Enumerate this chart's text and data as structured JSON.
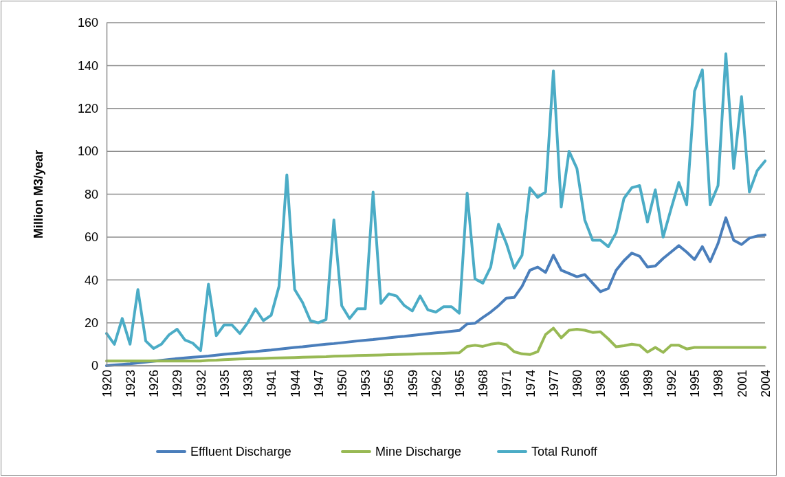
{
  "chart_data": {
    "type": "line",
    "ylabel": "Million M3/year",
    "ylim": [
      0,
      160
    ],
    "yticks": [
      0,
      20,
      40,
      60,
      80,
      100,
      120,
      140,
      160
    ],
    "grid": "y",
    "legend": "bottom",
    "marker": "none",
    "line_style": "solid",
    "categories": [
      "1920",
      null,
      null,
      "1923",
      null,
      null,
      "1926",
      null,
      null,
      "1929",
      null,
      null,
      "1932",
      null,
      null,
      "1935",
      null,
      null,
      "1938",
      null,
      null,
      "1941",
      null,
      null,
      "1944",
      null,
      null,
      "1947",
      null,
      null,
      "1950",
      null,
      null,
      "1953",
      null,
      null,
      "1956",
      null,
      null,
      "1959",
      null,
      null,
      "1962",
      null,
      null,
      "1965",
      null,
      null,
      "1968",
      null,
      null,
      "1971",
      null,
      null,
      "1974",
      null,
      null,
      "1977",
      null,
      null,
      "1980",
      null,
      null,
      "1983",
      null,
      null,
      "1986",
      null,
      null,
      "1989",
      null,
      null,
      "1992",
      null,
      null,
      "1995",
      null,
      null,
      "1998",
      null,
      null,
      "2001",
      null,
      null,
      "2004"
    ],
    "series": [
      {
        "name": "Effluent Discharge",
        "color": "#4a7ebb",
        "values": [
          0,
          0.3,
          0.6,
          0.9,
          1.3,
          1.7,
          2.1,
          2.5,
          2.9,
          3.3,
          3.6,
          3.9,
          4.2,
          4.5,
          4.9,
          5.3,
          5.6,
          5.9,
          6.3,
          6.6,
          7.0,
          7.3,
          7.7,
          8.1,
          8.5,
          8.8,
          9.2,
          9.6,
          10,
          10.3,
          10.7,
          11.1,
          11.5,
          11.9,
          12.2,
          12.6,
          13,
          13.4,
          13.7,
          14.1,
          14.5,
          14.9,
          15.3,
          15.6,
          16,
          16.4,
          19.5,
          19.8,
          22.5,
          25,
          28,
          31.5,
          31.8,
          37,
          44.5,
          46,
          43.5,
          51.5,
          44.5,
          43,
          41.5,
          42.5,
          38.5,
          34.5,
          36,
          44.5,
          49,
          52.5,
          51,
          46,
          46.5,
          50,
          53,
          56,
          53,
          49.5,
          55.5,
          48.5,
          57,
          69,
          58.5,
          56.5,
          59.5,
          60.5,
          61
        ]
      },
      {
        "name": "Mine Discharge",
        "color": "#98b954",
        "values": [
          2.2,
          2.2,
          2.2,
          2.2,
          2.2,
          2.2,
          2.2,
          2.2,
          2.2,
          2.2,
          2.2,
          2.2,
          2.2,
          2.5,
          2.6,
          2.8,
          3,
          3.1,
          3.2,
          3.3,
          3.4,
          3.5,
          3.6,
          3.7,
          3.8,
          3.9,
          4,
          4.1,
          4.2,
          4.4,
          4.5,
          4.6,
          4.7,
          4.8,
          4.9,
          5,
          5.1,
          5.2,
          5.3,
          5.4,
          5.5,
          5.6,
          5.7,
          5.8,
          5.9,
          6,
          9,
          9.5,
          9,
          10,
          10.5,
          9.8,
          6.5,
          5.5,
          5.2,
          6.5,
          14.5,
          17.5,
          13,
          16.5,
          17,
          16.5,
          15.5,
          15.8,
          12.5,
          8.8,
          9.3,
          10,
          9.5,
          6.3,
          8.5,
          6.2,
          9.5,
          9.5,
          7.8,
          8.5,
          8.5,
          8.5,
          8.5,
          8.5,
          8.5,
          8.5,
          8.5,
          8.5,
          8.5
        ]
      },
      {
        "name": "Total Runoff",
        "color": "#4bacc6",
        "values": [
          15,
          10,
          22,
          10,
          35.5,
          11.5,
          8,
          10,
          14.5,
          17,
          12,
          10.5,
          7,
          38,
          14,
          19,
          19,
          15,
          20,
          26.5,
          21,
          23.5,
          37,
          89,
          35.5,
          29.5,
          21,
          20,
          21.5,
          68,
          28,
          22,
          26.5,
          26.5,
          81,
          29,
          33.5,
          32.5,
          28,
          25.5,
          32.5,
          26,
          25,
          27.5,
          27.5,
          24.5,
          80.5,
          40.5,
          38.5,
          46,
          66,
          57,
          45.5,
          51.5,
          83,
          78.5,
          81,
          137.5,
          74,
          100,
          92,
          68,
          58.5,
          58.5,
          55.5,
          62,
          78,
          83,
          84,
          67,
          82,
          60,
          73,
          85.5,
          75,
          128,
          138,
          75,
          84,
          145.5,
          92,
          125.5,
          81,
          91,
          95.5
        ]
      }
    ]
  }
}
